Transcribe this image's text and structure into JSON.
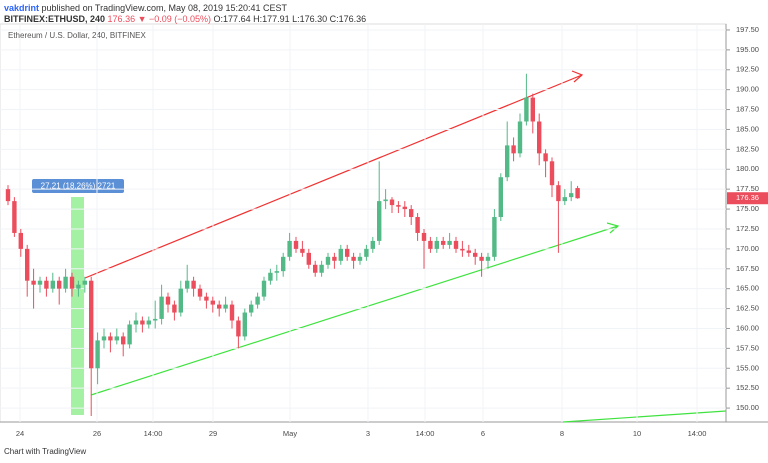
{
  "header": {
    "author": "vakdrint",
    "published": "published on TradingView.com, May 08, 2019 15:20:41 CEST",
    "symbol": "BITFINEX:ETHUSD, 240",
    "change": "176.36 ▼ −0.09 (−0.05%)",
    "ohlc": "O:177.64 H:177.91 L:176.30 C:176.36"
  },
  "footer": "Chart with TradingView",
  "chart_data": {
    "type": "candlestick",
    "title": "Ethereum / U.S. Dollar, 240, BITFINEX",
    "up_color": "#53b987",
    "down_color": "#eb4d5c",
    "measure_label": "27.21 (18.26%) 2721",
    "last_price_label": "176.36",
    "ylim": [
      148.25,
      198.5
    ],
    "yticks": [
      {
        "value": 150,
        "label": "150.00"
      },
      {
        "value": 152.5,
        "label": "152.50"
      },
      {
        "value": 155,
        "label": "155.00"
      },
      {
        "value": 157.5,
        "label": "157.50"
      },
      {
        "value": 160,
        "label": "160.00"
      },
      {
        "value": 162.5,
        "label": "162.50"
      },
      {
        "value": 165,
        "label": "165.00"
      },
      {
        "value": 167.5,
        "label": "167.50"
      },
      {
        "value": 170,
        "label": "170.00"
      },
      {
        "value": 172.5,
        "label": "172.50"
      },
      {
        "value": 175,
        "label": "175.00"
      },
      {
        "value": 177.5,
        "label": "177.50"
      },
      {
        "value": 180,
        "label": "180.00"
      },
      {
        "value": 182.5,
        "label": "182.50"
      },
      {
        "value": 185,
        "label": "185.00"
      },
      {
        "value": 187.5,
        "label": "187.50"
      },
      {
        "value": 190,
        "label": "190.00"
      },
      {
        "value": 192.5,
        "label": "192.50"
      },
      {
        "value": 195,
        "label": "195.00"
      },
      {
        "value": 197.5,
        "label": "197.50"
      }
    ],
    "xticks": [
      "24",
      "26",
      "14:00",
      "29",
      "May",
      "3",
      "14:00",
      "6",
      "8",
      "10",
      "14:00"
    ],
    "candles": [
      [
        177.5,
        178,
        175.5,
        176
      ],
      [
        176,
        176.5,
        171.5,
        172
      ],
      [
        172,
        172.5,
        169,
        170
      ],
      [
        170,
        170.5,
        164,
        166
      ],
      [
        166,
        167.5,
        162.5,
        165.5
      ],
      [
        165.5,
        166.5,
        164.5,
        166
      ],
      [
        166,
        166.5,
        164,
        165
      ],
      [
        165,
        167,
        164.5,
        166
      ],
      [
        166,
        166.5,
        163,
        165
      ],
      [
        165,
        167.5,
        164.5,
        166.5
      ],
      [
        166.5,
        167,
        164,
        165
      ],
      [
        165,
        166,
        164,
        165.5
      ],
      [
        165.5,
        166.5,
        164.5,
        166
      ],
      [
        166,
        166.5,
        149,
        155
      ],
      [
        155,
        159.5,
        153,
        158.5
      ],
      [
        158.5,
        160,
        157.5,
        159
      ],
      [
        159,
        159.5,
        157,
        158.5
      ],
      [
        158.5,
        160,
        158,
        159
      ],
      [
        159,
        159.5,
        156.5,
        158
      ],
      [
        158,
        161,
        157.5,
        160.5
      ],
      [
        160.5,
        162,
        159.5,
        161
      ],
      [
        161,
        161.5,
        159.5,
        160.5
      ],
      [
        160.5,
        161.5,
        160,
        161
      ],
      [
        161,
        163.5,
        160,
        161.2
      ],
      [
        161.2,
        165.5,
        160.5,
        164
      ],
      [
        164,
        164.5,
        162,
        163
      ],
      [
        163,
        163.5,
        161,
        162
      ],
      [
        162,
        166,
        161.5,
        165
      ],
      [
        165,
        168,
        164.5,
        166
      ],
      [
        166,
        166.5,
        164,
        165
      ],
      [
        165,
        165.5,
        163.5,
        164
      ],
      [
        164,
        164.5,
        162.5,
        163.5
      ],
      [
        163.5,
        164,
        162,
        163
      ],
      [
        163,
        163.5,
        161.5,
        162.5
      ],
      [
        162.5,
        164,
        162,
        163
      ],
      [
        163,
        163.5,
        160,
        161
      ],
      [
        161,
        161.5,
        157.5,
        159
      ],
      [
        159,
        162.5,
        158.5,
        162
      ],
      [
        162,
        163.5,
        161.5,
        163
      ],
      [
        163,
        164.5,
        162.5,
        164
      ],
      [
        164,
        166.5,
        163.5,
        166
      ],
      [
        166,
        167.5,
        165.5,
        167
      ],
      [
        167,
        168,
        166,
        167.2
      ],
      [
        167.2,
        169.5,
        166.5,
        169
      ],
      [
        169,
        172,
        168.5,
        171
      ],
      [
        171,
        171.5,
        169.5,
        170
      ],
      [
        170,
        171,
        169,
        169.5
      ],
      [
        169.5,
        170,
        167.5,
        168
      ],
      [
        168,
        168.5,
        166.5,
        167
      ],
      [
        167,
        168.5,
        166.5,
        168
      ],
      [
        168,
        169.5,
        167.5,
        169
      ],
      [
        169,
        169.5,
        167.5,
        168.5
      ],
      [
        168.5,
        170.5,
        168,
        170
      ],
      [
        170,
        170.5,
        168.5,
        169
      ],
      [
        169,
        169.5,
        167.5,
        168.5
      ],
      [
        168.5,
        169.5,
        168,
        169
      ],
      [
        169,
        170.5,
        168.5,
        170
      ],
      [
        170,
        171.5,
        169.5,
        171
      ],
      [
        171,
        181,
        170.5,
        176
      ],
      [
        176,
        177.5,
        175,
        176.2
      ],
      [
        176.2,
        176.5,
        174.5,
        175.5
      ],
      [
        175.5,
        176,
        174.5,
        175.3
      ],
      [
        175.3,
        176,
        174,
        175
      ],
      [
        175,
        175.5,
        173,
        174
      ],
      [
        174,
        174.5,
        171,
        172
      ],
      [
        172,
        172.5,
        167.5,
        171
      ],
      [
        171,
        171.5,
        169.5,
        170
      ],
      [
        170,
        171.5,
        169.5,
        171
      ],
      [
        171,
        171.5,
        170,
        170.5
      ],
      [
        170.5,
        172,
        170,
        171
      ],
      [
        171,
        171.5,
        169.5,
        170
      ],
      [
        170,
        171,
        169,
        169.8
      ],
      [
        169.8,
        170.5,
        169,
        169.5
      ],
      [
        169.5,
        170,
        168,
        169
      ],
      [
        169,
        169.5,
        166.5,
        168.5
      ],
      [
        168.5,
        169.5,
        167.5,
        169
      ],
      [
        169,
        175,
        168.5,
        174
      ],
      [
        174,
        179.5,
        173.5,
        179
      ],
      [
        179,
        186,
        178.5,
        183
      ],
      [
        183,
        184,
        181,
        182
      ],
      [
        182,
        187,
        181.5,
        186
      ],
      [
        186,
        192,
        185.5,
        189
      ],
      [
        189,
        189.5,
        184.5,
        186
      ],
      [
        186,
        187,
        180.5,
        182
      ],
      [
        182,
        182.5,
        179,
        181
      ],
      [
        181,
        181.5,
        176.5,
        178
      ],
      [
        178,
        178.5,
        169.5,
        176
      ],
      [
        176,
        177.5,
        175.5,
        176.5
      ],
      [
        176.5,
        178.5,
        176,
        177
      ],
      [
        177.64,
        177.91,
        176.3,
        176.36
      ]
    ]
  }
}
